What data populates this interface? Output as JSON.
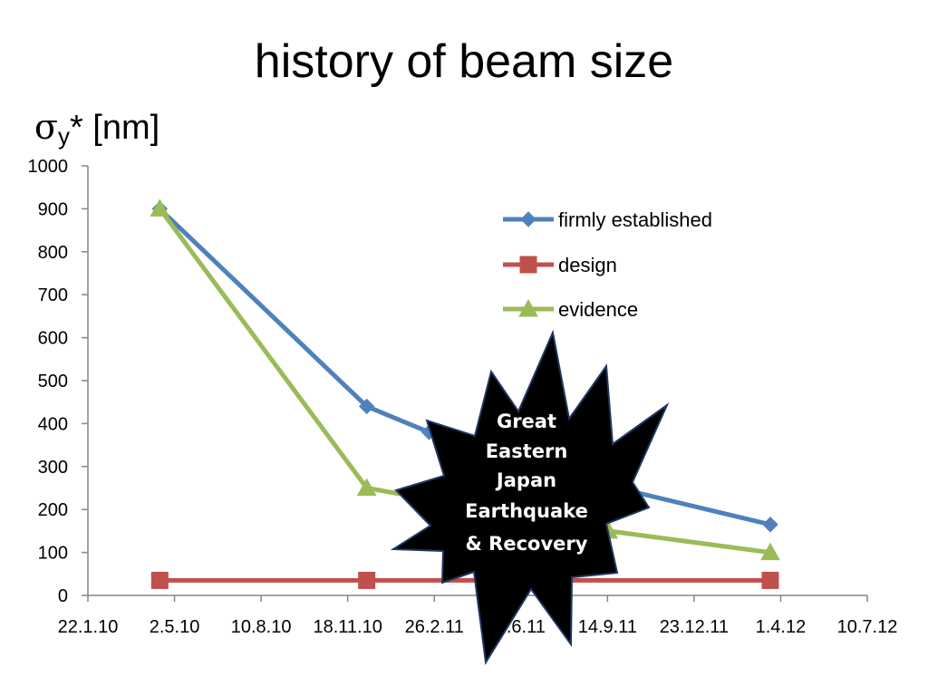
{
  "title": "history of beam size",
  "ylabel": {
    "symbol": "σ",
    "subscript": "y",
    "suffix": "* [nm]"
  },
  "annotation": {
    "lines": [
      "Great",
      "Eastern",
      "Japan",
      "Earthquake",
      "& Recovery"
    ]
  },
  "chart_data": {
    "type": "line",
    "title": "history of beam size",
    "ylabel": "σy* [nm]",
    "xlabel": "",
    "ylim": [
      0,
      1000
    ],
    "yticks": [
      0,
      100,
      200,
      300,
      400,
      500,
      600,
      700,
      800,
      900,
      1000
    ],
    "xlim": [
      "22.1.10",
      "10.7.12"
    ],
    "xticks": [
      "22.1.10",
      "2.5.10",
      "10.8.10",
      "18.11.10",
      "26.2.11",
      "6.6.11",
      "14.9.11",
      "23.12.11",
      "1.4.12",
      "10.7.12"
    ],
    "legend_position": "top-right",
    "grid": false,
    "series": [
      {
        "name": "firmly established",
        "color": "#4f81bd",
        "marker": "diamond",
        "points": [
          {
            "x": "15.4.10",
            "y": 900
          },
          {
            "x": "10.12.10",
            "y": 440
          },
          {
            "x": "20.2.11",
            "y": 380
          },
          {
            "x": "15.9.11",
            "y": 255
          },
          {
            "x": "20.3.12",
            "y": 165
          }
        ]
      },
      {
        "name": "design",
        "color": "#c0504d",
        "marker": "square",
        "points": [
          {
            "x": "15.4.10",
            "y": 35
          },
          {
            "x": "10.12.10",
            "y": 35
          },
          {
            "x": "20.3.12",
            "y": 35
          }
        ]
      },
      {
        "name": "evidence",
        "color": "#9bbb59",
        "marker": "triangle",
        "points": [
          {
            "x": "15.4.10",
            "y": 900
          },
          {
            "x": "10.12.10",
            "y": 250
          },
          {
            "x": "15.9.11",
            "y": 150
          },
          {
            "x": "20.3.12",
            "y": 100
          }
        ]
      }
    ]
  }
}
